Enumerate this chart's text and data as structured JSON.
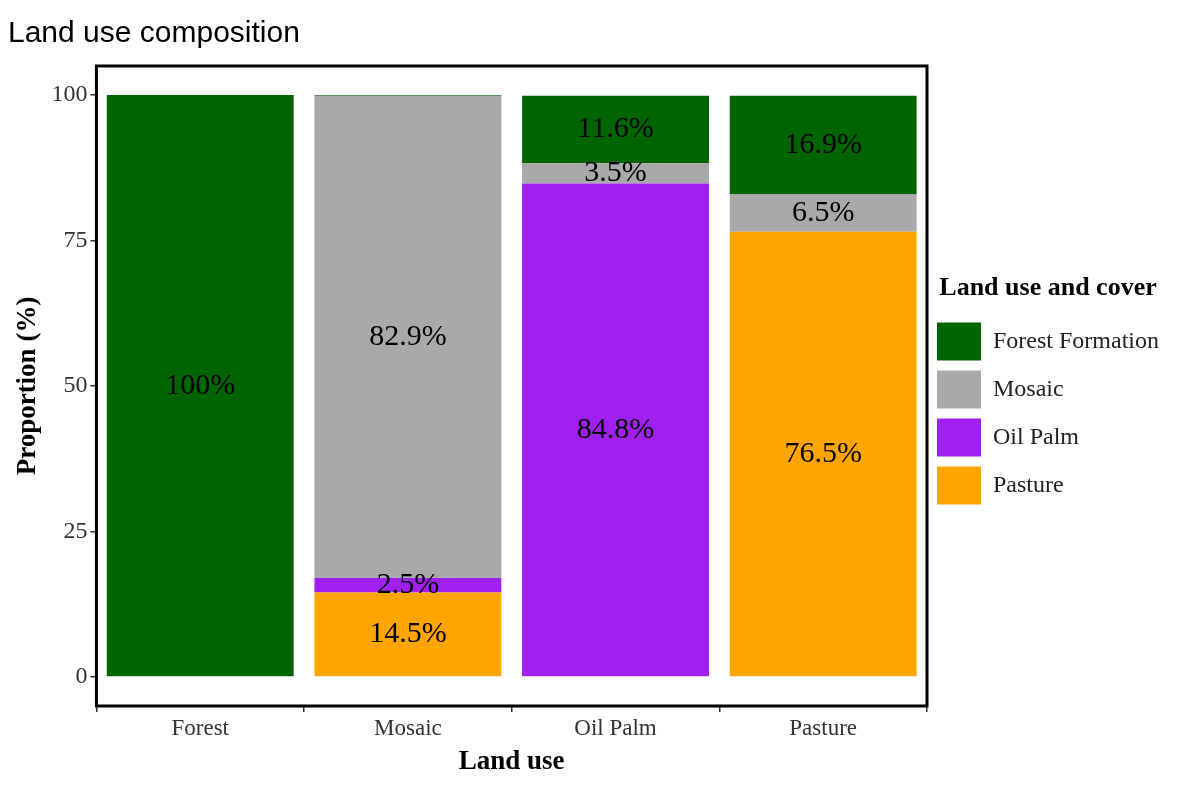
{
  "chart_data": {
    "type": "bar",
    "title": "Land use composition",
    "xlabel": "Land use",
    "ylabel": "Proportion (%)",
    "legend_title": "Land use and cover",
    "categories": [
      "Forest",
      "Mosaic",
      "Oil Palm",
      "Pasture"
    ],
    "stacked": true,
    "ylim": [
      -5,
      105
    ],
    "yticks": [
      0,
      25,
      50,
      75,
      100
    ],
    "grid": false,
    "legend": "right",
    "series": [
      {
        "name": "Pasture",
        "color": "#ffa500",
        "values": [
          0,
          14.5,
          0,
          76.5
        ],
        "value_labels": [
          null,
          "14.5%",
          null,
          "76.5%"
        ]
      },
      {
        "name": "Oil Palm",
        "color": "#a020f0",
        "values": [
          0,
          2.5,
          84.8,
          0
        ],
        "value_labels": [
          null,
          "2.5%",
          "84.8%",
          null
        ]
      },
      {
        "name": "Mosaic",
        "color": "#a9a9a9",
        "values": [
          0,
          82.9,
          3.5,
          6.5
        ],
        "value_labels": [
          null,
          "82.9%",
          "3.5%",
          "6.5%"
        ]
      },
      {
        "name": "Forest Formation",
        "color": "#006400",
        "values": [
          100,
          0.1,
          11.6,
          16.9
        ],
        "value_labels": [
          "100%",
          null,
          "11.6%",
          "16.9%"
        ]
      }
    ]
  }
}
